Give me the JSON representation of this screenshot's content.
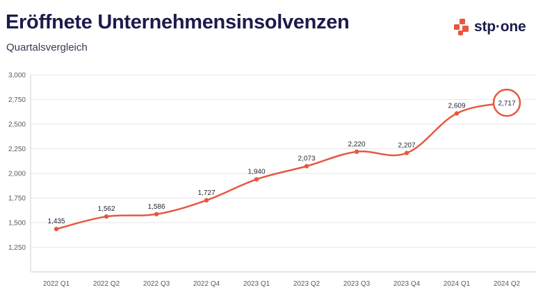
{
  "header": {
    "title": "Eröffnete Unternehmensinsolvenzen",
    "subtitle": "Quartalsvergleich"
  },
  "logo": {
    "text": "stp·one",
    "icon": "stp-one-logo-icon",
    "color": "#e8573f"
  },
  "colors": {
    "line": "#e8573f",
    "title": "#1b1b4b",
    "grid": "#e6e6e6"
  },
  "chart_data": {
    "type": "line",
    "title": "Eröffnete Unternehmensinsolvenzen",
    "subtitle": "Quartalsvergleich",
    "categories": [
      "2022 Q1",
      "2022 Q2",
      "2022 Q3",
      "2022 Q4",
      "2023 Q1",
      "2023 Q2",
      "2023 Q3",
      "2023 Q4",
      "2024 Q1",
      "2024 Q2"
    ],
    "values": [
      1435,
      1562,
      1586,
      1727,
      1940,
      2073,
      2220,
      2207,
      2609,
      2717
    ],
    "value_labels": [
      "1,435",
      "1,562",
      "1,586",
      "1,727",
      "1,940",
      "2,073",
      "2,220",
      "2,207",
      "2,609",
      "2,717"
    ],
    "yticks": [
      1250,
      1500,
      1750,
      2000,
      2250,
      2500,
      2750,
      3000
    ],
    "ytick_labels": [
      "1,250",
      "1,500",
      "1,750",
      "2,000",
      "2,250",
      "2,500",
      "2,750",
      "3,000"
    ],
    "ylim": [
      1000,
      3000
    ],
    "xlabel": "",
    "ylabel": "",
    "grid": true,
    "highlight": "2024 Q2"
  }
}
